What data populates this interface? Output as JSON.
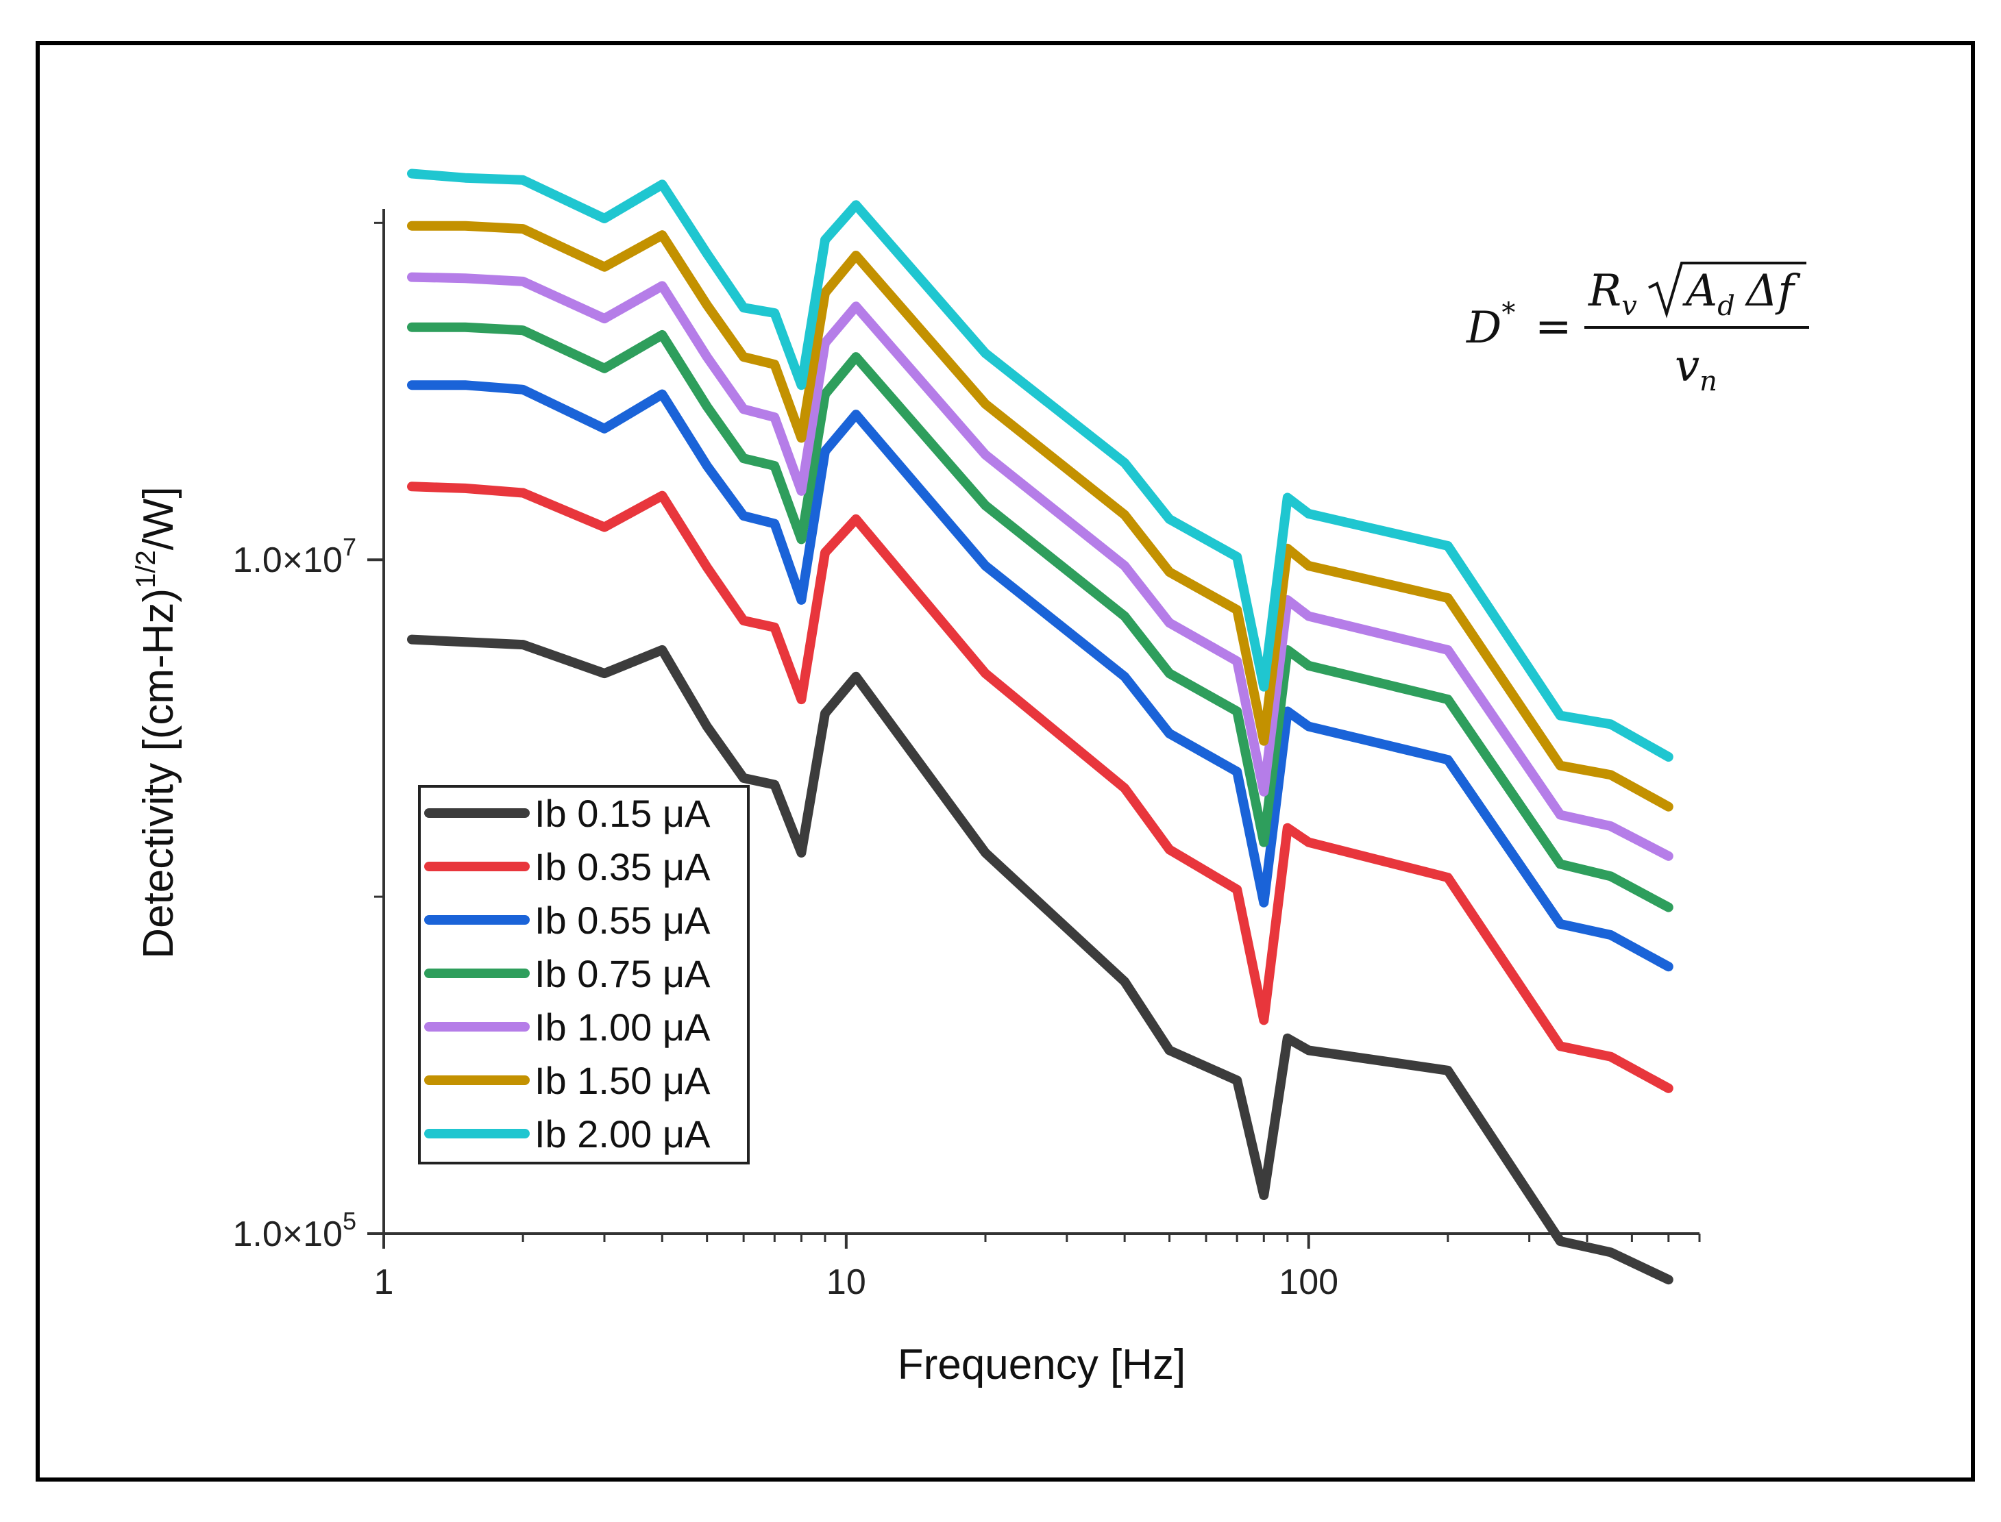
{
  "chart_data": {
    "type": "line",
    "title": "",
    "xlabel": "Frequency [Hz]",
    "ylabel_main": "Detectivity [(cm-Hz)",
    "ylabel_sup": "1/2",
    "ylabel_end": "/W]",
    "xscale": "log",
    "yscale": "log",
    "xlim": [
      1,
      700
    ],
    "ylim": [
      100000,
      110000000
    ],
    "x_ticks": [
      {
        "value": 1,
        "label": "1"
      },
      {
        "value": 10,
        "label": "10"
      },
      {
        "value": 100,
        "label": "100"
      }
    ],
    "y_ticks": [
      {
        "value": 100000,
        "mant": "1.0×10",
        "exp": "5"
      },
      {
        "value": 10000000,
        "mant": "1.0×10",
        "exp": "7"
      }
    ],
    "y_minor_ticks": [
      1000000,
      100000000
    ],
    "legend_position": "bottom-left",
    "formula": {
      "lhs": "D",
      "lhs_sup": "*",
      "eq": "=",
      "num_R": "R",
      "num_R_sub": "v",
      "num_A": "A",
      "num_A_sub": "d",
      "num_delta": "Δf",
      "den_v": "v",
      "den_v_sub": "n"
    },
    "x": [
      1.15,
      1.5,
      2.0,
      3.0,
      4.0,
      5.0,
      6.0,
      7.0,
      8.0,
      9.0,
      10.5,
      20.0,
      40.0,
      50.0,
      70.0,
      80.0,
      90.0,
      100.0,
      200.0,
      350.0,
      450.0,
      600.0
    ],
    "series": [
      {
        "name": "Ib 0.15 μA",
        "color": "#3c3c3c",
        "values": [
          5800000.0,
          5700000.0,
          5600000.0,
          4600000.0,
          5400000.0,
          3200000.0,
          2250000.0,
          2150000.0,
          1350000.0,
          3500000.0,
          4500000.0,
          1350000.0,
          560000.0,
          350000.0,
          285000.0,
          130000.0,
          380000.0,
          350000.0,
          305000.0,
          95000.0,
          88000.0,
          73000.0
        ]
      },
      {
        "name": "Ib 0.35 μA",
        "color": "#e8363c",
        "values": [
          16500000.0,
          16300000.0,
          15800000.0,
          12500000.0,
          15500000.0,
          9500000.0,
          6600000.0,
          6300000.0,
          3850000.0,
          10500000.0,
          13200000.0,
          4600000.0,
          2100000.0,
          1380000.0,
          1050000.0,
          430000.0,
          1600000.0,
          1450000.0,
          1140000.0,
          360000.0,
          335000.0,
          270000.0
        ]
      },
      {
        "name": "Ib 0.55 μA",
        "color": "#1a63d8",
        "values": [
          33000000.0,
          33000000.0,
          32000000.0,
          24500000.0,
          31000000.0,
          19000000.0,
          13500000.0,
          12800000.0,
          7600000.0,
          21000000.0,
          27000000.0,
          9600000.0,
          4500000.0,
          3050000.0,
          2350000.0,
          960000.0,
          3550000.0,
          3200000.0,
          2550000.0,
          830000.0,
          770000.0,
          620000.0
        ]
      },
      {
        "name": "Ib 0.75 μA",
        "color": "#2e9e5c",
        "values": [
          49000000.0,
          49000000.0,
          48000000.0,
          37000000.0,
          46500000.0,
          28500000.0,
          20000000.0,
          19000000.0,
          11500000.0,
          31000000.0,
          40000000.0,
          14500000.0,
          6800000.0,
          4600000.0,
          3550000.0,
          1450000.0,
          5400000.0,
          4850000.0,
          3850000.0,
          1250000.0,
          1150000.0,
          930000.0
        ]
      },
      {
        "name": "Ib 1.00 μA",
        "color": "#b57de8",
        "values": [
          69000000.0,
          68500000.0,
          67000000.0,
          52000000.0,
          65000000.0,
          40000000.0,
          28000000.0,
          26500000.0,
          16000000.0,
          44000000.0,
          56500000.0,
          20500000.0,
          9600000.0,
          6500000.0,
          5000000.0,
          2050000.0,
          7600000.0,
          6800000.0,
          5400000.0,
          1750000.0,
          1620000.0,
          1320000.0
        ]
      },
      {
        "name": "Ib 1.50 μA",
        "color": "#c39100",
        "values": [
          98000000.0,
          98000000.0,
          96000000.0,
          74000000.0,
          92000000.0,
          57000000.0,
          40000000.0,
          38000000.0,
          23000000.0,
          62000000.0,
          80000000.0,
          29000000.0,
          13600000.0,
          9200000.0,
          7100000.0,
          2900000.0,
          10800000.0,
          9600000.0,
          7700000.0,
          2450000.0,
          2300000.0,
          1850000.0
        ]
      },
      {
        "name": "Ib 2.00 μA",
        "color": "#1fc6d0",
        "values": [
          140000000.0,
          136000000.0,
          134000000.0,
          103000000.0,
          130000000.0,
          81000000.0,
          56000000.0,
          54000000.0,
          33000000.0,
          89000000.0,
          113000000.0,
          41000000.0,
          19400000.0,
          13200000.0,
          10200000.0,
          4200000.0,
          15300000.0,
          13700000.0,
          11000000.0,
          3450000.0,
          3250000.0,
          2600000.0
        ]
      }
    ]
  }
}
